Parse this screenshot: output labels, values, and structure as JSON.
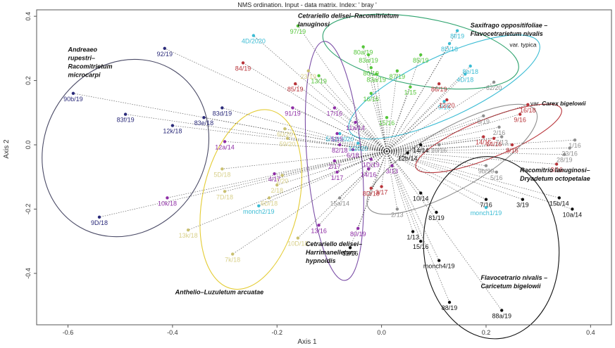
{
  "chart_data": {
    "type": "scatter",
    "title": "NMS ordination. Input - data matrix. Index: ' bray '",
    "xlabel": "Axis 1",
    "ylabel": "Axis 2",
    "xlim": [
      -0.66,
      0.44
    ],
    "ylim": [
      -0.56,
      0.42
    ],
    "xticks": [
      "-0.6",
      "-0.4",
      "-0.2",
      "0.0",
      "0.2",
      "0.4"
    ],
    "xtick_values": [
      -0.6,
      -0.4,
      -0.2,
      0.0,
      0.2,
      0.4
    ],
    "yticks": [
      "-0.4",
      "-0.2",
      "0.0",
      "0.2",
      "0.4"
    ],
    "ytick_values": [
      -0.4,
      -0.2,
      0.0,
      0.2,
      0.4
    ],
    "grid": false,
    "centroid": [
      0.01,
      -0.02
    ],
    "groups": [
      {
        "label": "Andreaeo rupestri–Racomitrietum microcarpi",
        "color": "#2b2b7a",
        "ellipse": {
          "cx": -0.49,
          "cy": -0.01,
          "rx": 0.175,
          "ry": 0.25,
          "angle": 60,
          "stroke": "#4a4a66"
        },
        "points": [
          {
            "x": -0.415,
            "y": 0.3,
            "label": "92/19"
          },
          {
            "x": -0.59,
            "y": 0.16,
            "label": "90b/19"
          },
          {
            "x": -0.49,
            "y": 0.095,
            "label": "83f/19"
          },
          {
            "x": -0.4,
            "y": 0.06,
            "label": "12k/18"
          },
          {
            "x": -0.34,
            "y": 0.085,
            "label": "83e/18"
          },
          {
            "x": -0.305,
            "y": 0.115,
            "label": "83d/19"
          },
          {
            "x": -0.54,
            "y": -0.225,
            "label": "9D/18"
          }
        ]
      },
      {
        "label": "Cetrariello delisei–Racomitrietum lanuginosi",
        "color": "#55c63a",
        "ellipse": {
          "cx": 0.075,
          "cy": 0.29,
          "rx": 0.19,
          "ry": 0.105,
          "angle": -10,
          "stroke": "#2ea36e"
        },
        "points": [
          {
            "x": -0.16,
            "y": 0.37,
            "label": "97/19"
          },
          {
            "x": -0.035,
            "y": 0.305,
            "label": "80a/19"
          },
          {
            "x": -0.025,
            "y": 0.28,
            "label": "83a/19"
          },
          {
            "x": -0.02,
            "y": 0.24,
            "label": "80/19"
          },
          {
            "x": -0.01,
            "y": 0.22,
            "label": "83a/19"
          },
          {
            "x": 0.03,
            "y": 0.23,
            "label": "87/19"
          },
          {
            "x": 0.075,
            "y": 0.28,
            "label": "85/19"
          },
          {
            "x": 0.055,
            "y": 0.18,
            "label": "1/15"
          },
          {
            "x": -0.02,
            "y": 0.16,
            "label": "16/16"
          },
          {
            "x": 0.01,
            "y": 0.085,
            "label": "15/16"
          },
          {
            "x": -0.12,
            "y": 0.215,
            "label": "13/19"
          }
        ]
      },
      {
        "label": "Saxifrago oppositifoliae – Flavocetrarietum nivalis var. typica",
        "color": "#3bbcd4",
        "ellipse": {
          "cx": 0.12,
          "cy": 0.18,
          "rx": 0.2,
          "ry": 0.095,
          "angle": 25,
          "stroke": "#3bbcd4"
        },
        "points": [
          {
            "x": 0.145,
            "y": 0.355,
            "label": "8f/19"
          },
          {
            "x": 0.13,
            "y": 0.315,
            "label": "8D/18"
          },
          {
            "x": 0.17,
            "y": 0.245,
            "label": "8e/18"
          },
          {
            "x": 0.16,
            "y": 0.22,
            "label": "4D/18"
          },
          {
            "x": -0.245,
            "y": 0.34,
            "label": "4D/2020"
          },
          {
            "x": 0.12,
            "y": 0.135,
            "label": "9/16"
          },
          {
            "x": -0.08,
            "y": 0.035,
            "label": "5/12/2020"
          }
        ]
      },
      {
        "label": "Saxifrago oppositifoliae – Flavocetrarietum nivalis var. Carex bigelowii",
        "color": "#b8343a",
        "ellipse": {
          "cx": 0.205,
          "cy": 0.02,
          "rx": 0.15,
          "ry": 0.06,
          "angle": 22,
          "stroke": "#b8343a"
        },
        "points": [
          {
            "x": -0.265,
            "y": 0.255,
            "label": "84/19"
          },
          {
            "x": -0.165,
            "y": 0.19,
            "label": "85/19"
          },
          {
            "x": 0.11,
            "y": 0.19,
            "label": "86/19"
          },
          {
            "x": 0.125,
            "y": 0.14,
            "label": "12/20"
          },
          {
            "x": 0.28,
            "y": 0.125,
            "label": "16/18"
          },
          {
            "x": 0.265,
            "y": 0.095,
            "label": "9/16"
          },
          {
            "x": 0.195,
            "y": 0.025,
            "label": "14/15"
          },
          {
            "x": 0.215,
            "y": 0.02,
            "label": "14/16"
          },
          {
            "x": 0.25,
            "y": 0.0,
            "label": "8/16"
          },
          {
            "x": 0.335,
            "y": -0.06,
            "label": "3/16"
          },
          {
            "x": -0.02,
            "y": -0.135,
            "label": "8D/18"
          },
          {
            "x": 0.0,
            "y": -0.13,
            "label": "3/17"
          }
        ]
      },
      {
        "label": "Racomitrio lanuginosi– Dryadetum octopetalae",
        "color": "#8f8f8f",
        "ellipse": {
          "cx": 0.135,
          "cy": -0.045,
          "rx": 0.185,
          "ry": 0.095,
          "angle": 30,
          "stroke": "#8f8f8f"
        },
        "points": [
          {
            "x": 0.215,
            "y": 0.195,
            "label": "62/20"
          },
          {
            "x": 0.195,
            "y": 0.09,
            "label": "8/19"
          },
          {
            "x": 0.11,
            "y": 0.0,
            "label": "10/16"
          },
          {
            "x": 0.225,
            "y": 0.055,
            "label": "2/16"
          },
          {
            "x": 0.23,
            "y": 0.025,
            "label": "7/13"
          },
          {
            "x": 0.36,
            "y": -0.01,
            "label": "23/16"
          },
          {
            "x": 0.37,
            "y": 0.015,
            "label": "1/16"
          },
          {
            "x": 0.35,
            "y": -0.03,
            "label": "28/19"
          },
          {
            "x": 0.2,
            "y": -0.065,
            "label": "9b/20"
          },
          {
            "x": 0.22,
            "y": -0.085,
            "label": "5/16"
          },
          {
            "x": 0.03,
            "y": -0.2,
            "label": "2/13"
          },
          {
            "x": -0.08,
            "y": -0.165,
            "label": "15a/14"
          }
        ]
      },
      {
        "label": "Flavocetrario nivalis – Caricetum bigelowii",
        "color": "#111111",
        "ellipse": {
          "cx": 0.21,
          "cy": -0.32,
          "rx": 0.175,
          "ry": 0.21,
          "angle": 95,
          "stroke": "#111111"
        },
        "points": [
          {
            "x": 0.075,
            "y": 0.0,
            "label": "14/14"
          },
          {
            "x": 0.05,
            "y": -0.025,
            "label": "12b/14"
          },
          {
            "x": 0.075,
            "y": -0.15,
            "label": "10/14"
          },
          {
            "x": 0.105,
            "y": -0.21,
            "label": "81/19"
          },
          {
            "x": 0.2,
            "y": -0.17,
            "label": "7/16"
          },
          {
            "x": 0.27,
            "y": -0.17,
            "label": "3/19"
          },
          {
            "x": 0.34,
            "y": -0.165,
            "label": "15b/14"
          },
          {
            "x": 0.365,
            "y": -0.2,
            "label": "10a/14"
          },
          {
            "x": -0.06,
            "y": -0.32,
            "label": "12/16"
          },
          {
            "x": 0.13,
            "y": -0.49,
            "label": "88/19"
          },
          {
            "x": 0.23,
            "y": -0.515,
            "label": "88a/19"
          },
          {
            "x": 0.06,
            "y": -0.27,
            "label": "1/13"
          },
          {
            "x": 0.075,
            "y": -0.3,
            "label": "15/16"
          },
          {
            "x": 0.11,
            "y": -0.36,
            "label": "monch4/19"
          }
        ]
      },
      {
        "label": "Cetrariello delisei– Harrimanelletum hypnoidis",
        "color": "#8e2da5",
        "ellipse": {
          "cx": -0.09,
          "cy": -0.05,
          "rx": 0.23,
          "ry": 0.085,
          "angle": 95,
          "stroke": "#7b4ea6"
        },
        "points": [
          {
            "x": -0.17,
            "y": 0.115,
            "label": "91/19"
          },
          {
            "x": -0.09,
            "y": 0.115,
            "label": "17/16"
          },
          {
            "x": -0.05,
            "y": 0.07,
            "label": "11a/14"
          },
          {
            "x": -0.085,
            "y": 0.035,
            "label": "5/15"
          },
          {
            "x": -0.08,
            "y": 0.0,
            "label": "82/18"
          },
          {
            "x": -0.055,
            "y": -0.015,
            "label": "6/18"
          },
          {
            "x": -0.09,
            "y": -0.05,
            "label": "2/17"
          },
          {
            "x": -0.085,
            "y": -0.085,
            "label": "1/17"
          },
          {
            "x": -0.02,
            "y": -0.045,
            "label": "1D/19"
          },
          {
            "x": 0.02,
            "y": -0.065,
            "label": "3/13"
          },
          {
            "x": -0.025,
            "y": -0.075,
            "label": "14/16"
          },
          {
            "x": -0.3,
            "y": 0.01,
            "label": "12a/14"
          },
          {
            "x": -0.41,
            "y": -0.165,
            "label": "10k/18"
          },
          {
            "x": -0.205,
            "y": -0.09,
            "label": "4/17"
          },
          {
            "x": -0.045,
            "y": -0.26,
            "label": "80/19"
          },
          {
            "x": -0.12,
            "y": -0.25,
            "label": "13/16"
          }
        ]
      },
      {
        "label": "Anthelio–Luzuletum arcuatae",
        "color": "#d8d08a",
        "ellipse": {
          "cx": -0.25,
          "cy": -0.17,
          "rx": 0.175,
          "ry": 0.15,
          "angle": 78,
          "stroke": "#e4cc34"
        },
        "points": [
          {
            "x": -0.14,
            "y": 0.23,
            "label": "23/19"
          },
          {
            "x": -0.185,
            "y": 0.05,
            "label": "60/20"
          },
          {
            "x": -0.18,
            "y": 0.02,
            "label": "59/20"
          },
          {
            "x": -0.305,
            "y": -0.075,
            "label": "5D/18"
          },
          {
            "x": -0.19,
            "y": -0.095,
            "label": "1/20"
          },
          {
            "x": -0.2,
            "y": -0.125,
            "label": "2/18"
          },
          {
            "x": -0.3,
            "y": -0.145,
            "label": "7D/18"
          },
          {
            "x": -0.215,
            "y": -0.165,
            "label": "6D/18"
          },
          {
            "x": -0.37,
            "y": -0.265,
            "label": "13k/18"
          },
          {
            "x": -0.285,
            "y": -0.34,
            "label": "7k/18"
          },
          {
            "x": -0.16,
            "y": -0.29,
            "label": "10D/18"
          }
        ]
      },
      {
        "label": "",
        "color": "#3bbcd4",
        "ellipse": null,
        "points": [
          {
            "x": -0.235,
            "y": -0.19,
            "label": "monch2/19"
          },
          {
            "x": -0.045,
            "y": 0.005,
            "label": "1/2020"
          },
          {
            "x": 0.2,
            "y": -0.195,
            "label": "monch1/19"
          }
        ]
      }
    ],
    "annotations": [
      {
        "lines": [
          "Andreaeo",
          "rupestri–",
          "Racomitrietum",
          "microcarpi"
        ],
        "x": -0.6,
        "y": 0.29
      },
      {
        "lines": [
          "Cetrariello delisei–Racomitrietum",
          "lanuginosi"
        ],
        "x": -0.16,
        "y": 0.395
      },
      {
        "lines": [
          "Saxifrago oppositifoliae –",
          "Flavocetrarietum nivalis"
        ],
        "x": 0.17,
        "y": 0.365
      },
      {
        "lines": [
          "var. typica"
        ],
        "x": 0.245,
        "y": 0.305,
        "sub": true
      },
      {
        "lines": [
          "var. Carex bigelowii"
        ],
        "x": 0.285,
        "y": 0.122,
        "sub": true,
        "mixed": "Carex bigelowii"
      },
      {
        "lines": [
          "Racomitrio lanuginosi–",
          "Dryadetum octopetalae"
        ],
        "x": 0.265,
        "y": -0.085
      },
      {
        "lines": [
          "Cetrariello delisei–",
          "Harrimanelletum",
          "hypnoidis"
        ],
        "x": -0.145,
        "y": -0.315
      },
      {
        "lines": [
          "Anthelio–Luzuletum arcuatae"
        ],
        "x": -0.395,
        "y": -0.465
      },
      {
        "lines": [
          "Flavocetrario nivalis –",
          "Caricetum bigelowii"
        ],
        "x": 0.19,
        "y": -0.42
      }
    ]
  }
}
